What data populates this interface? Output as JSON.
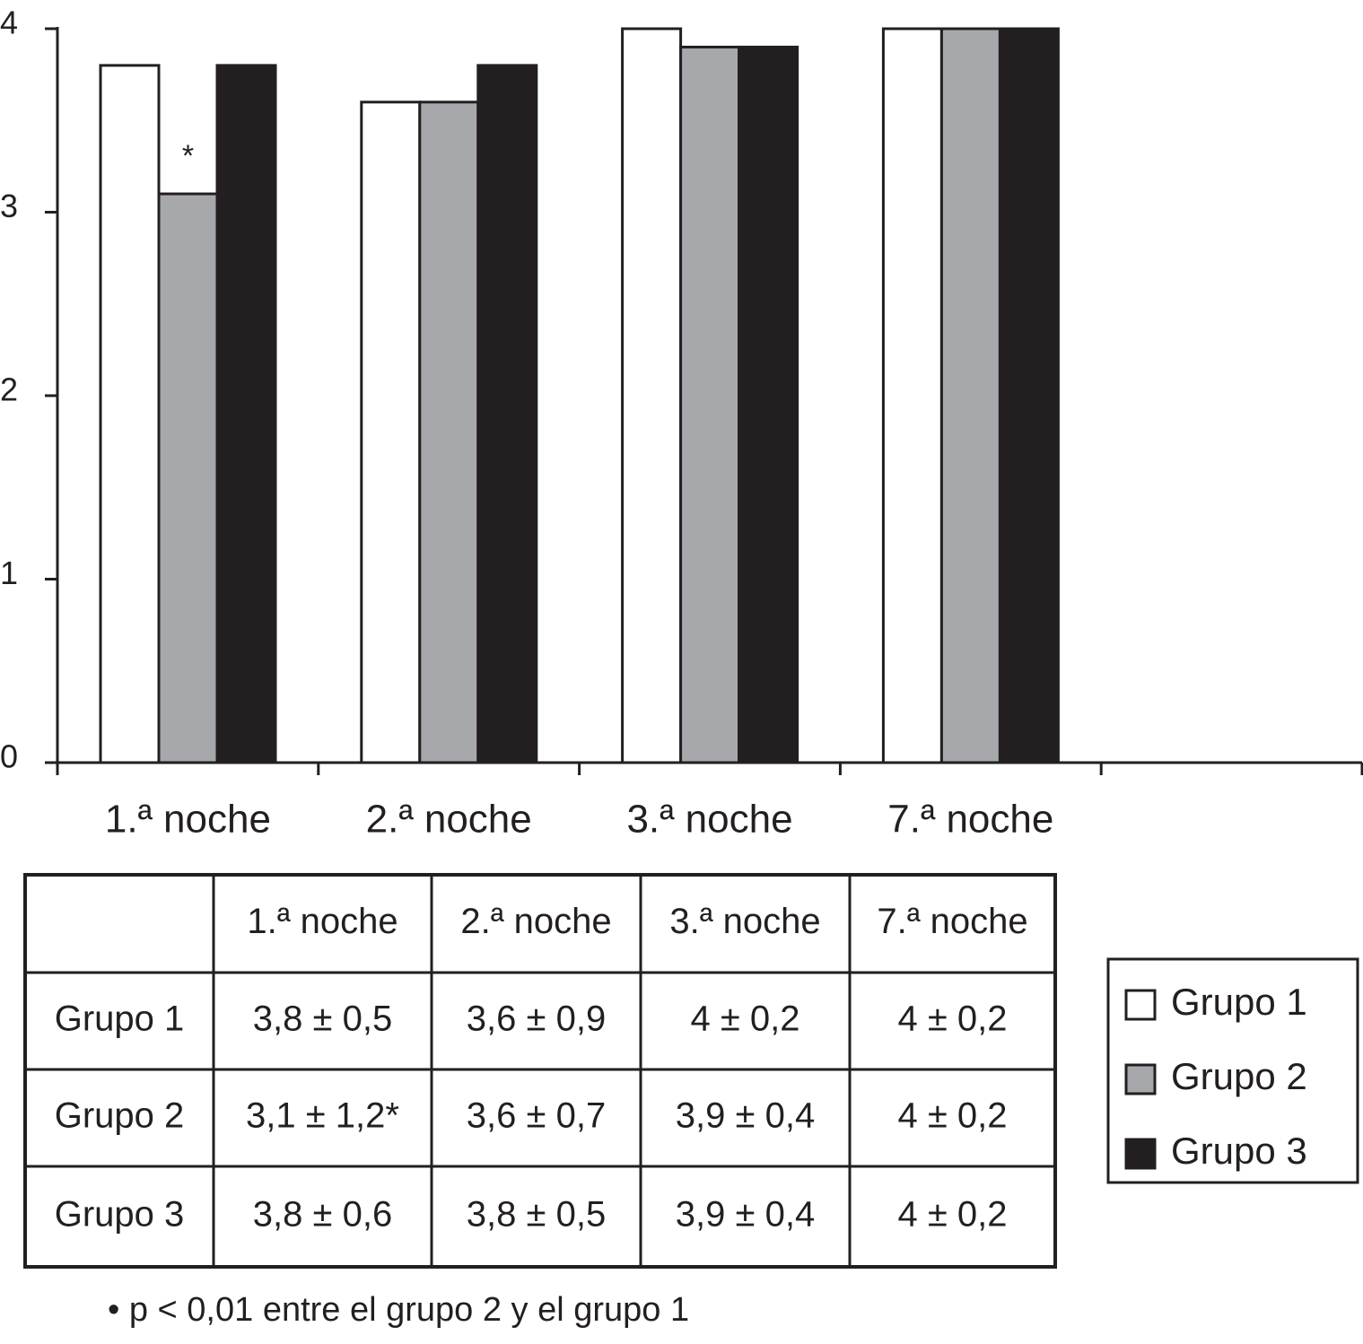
{
  "chart_data": {
    "type": "bar",
    "categories": [
      "1.ª noche",
      "2.ª noche",
      "3.ª noche",
      "7.ª noche",
      null
    ],
    "series": [
      {
        "name": "Grupo 1",
        "color": "#ffffff",
        "values": [
          3.8,
          3.6,
          4,
          4,
          null
        ]
      },
      {
        "name": "Grupo 2",
        "color": "#a6a8ab",
        "values": [
          3.1,
          3.6,
          3.9,
          4,
          null
        ]
      },
      {
        "name": "Grupo 3",
        "color": "#231f20",
        "values": [
          3.8,
          3.8,
          3.9,
          4,
          null
        ]
      }
    ],
    "annotation": "*",
    "ylim": [
      0,
      4
    ],
    "yticks": [
      0,
      1,
      2,
      3,
      4
    ],
    "grid": false,
    "legend": "right"
  },
  "table": {
    "columns": [
      "1.ª noche",
      "2.ª noche",
      "3.ª noche",
      "7.ª noche"
    ],
    "rows": [
      {
        "label": "Grupo 1",
        "cells": [
          "3,8 ± 0,5",
          "3,6 ± 0,9",
          "4 ± 0,2",
          "4 ± 0,2"
        ]
      },
      {
        "label": "Grupo 2",
        "cells": [
          "3,1 ± 1,2*",
          "3,6 ± 0,7",
          "3,9 ± 0,4",
          "4 ± 0,2"
        ]
      },
      {
        "label": "Grupo 3",
        "cells": [
          "3,8 ± 0,6",
          "3,8 ± 0,5",
          "3,9 ± 0,4",
          "4 ± 0,2"
        ]
      }
    ]
  },
  "footnote": "•  p <  0,01 entre el grupo 2 y el grupo 1"
}
